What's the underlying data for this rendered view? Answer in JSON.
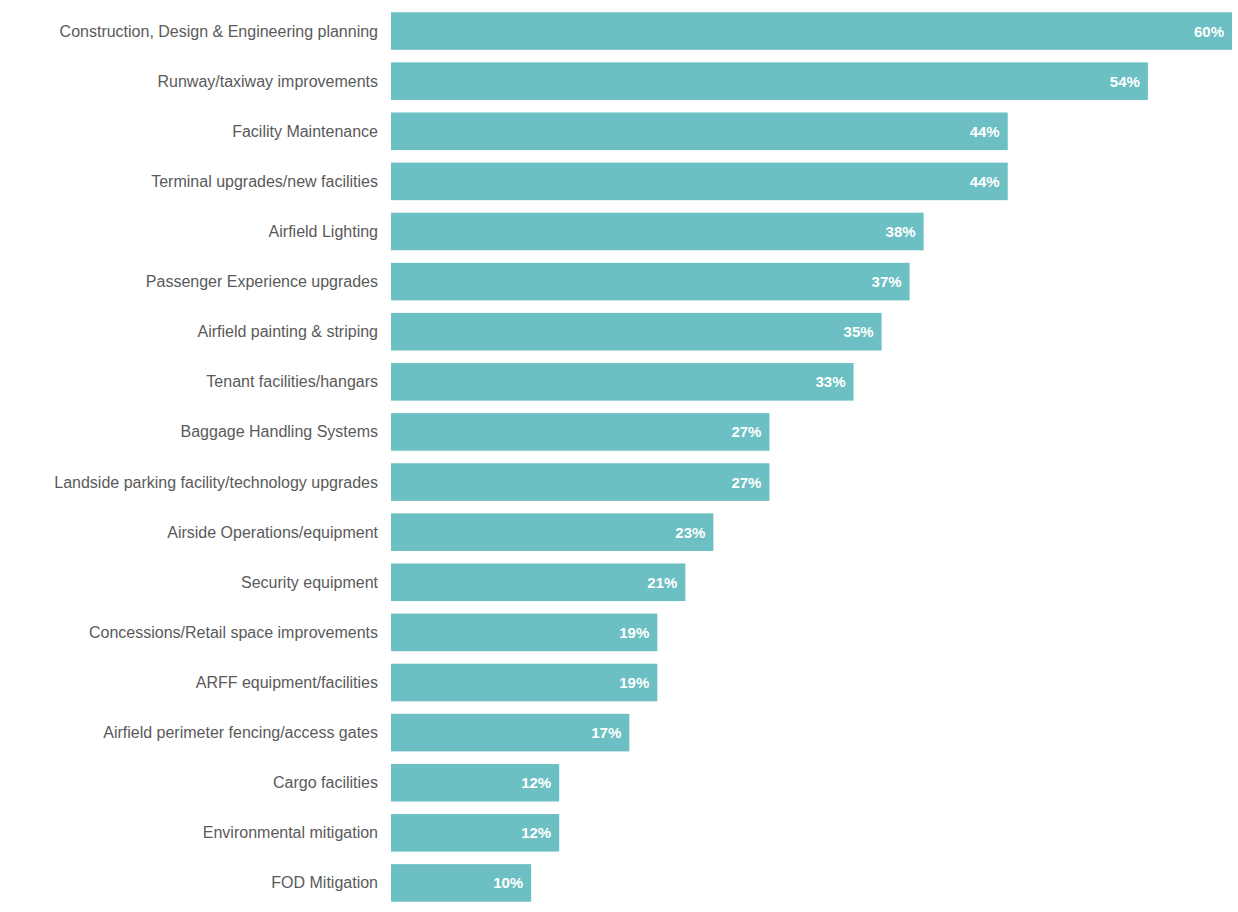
{
  "chart_data": {
    "type": "bar",
    "orientation": "horizontal",
    "categories": [
      "Construction, Design & Engineering planning",
      "Runway/taxiway improvements",
      "Facility Maintenance",
      "Terminal upgrades/new facilities",
      "Airfield Lighting",
      "Passenger Experience upgrades",
      "Airfield painting & striping",
      "Tenant facilities/hangars",
      "Baggage Handling Systems",
      "Landside parking facility/technology upgrades",
      "Airside Operations/equipment",
      "Security equipment",
      "Concessions/Retail space improvements",
      "ARFF equipment/facilities",
      "Airfield perimeter fencing/access gates",
      "Cargo facilities",
      "Environmental mitigation",
      "FOD Mitigation"
    ],
    "values": [
      60,
      54,
      44,
      44,
      38,
      37,
      35,
      33,
      27,
      27,
      23,
      21,
      19,
      19,
      17,
      12,
      12,
      10
    ],
    "value_labels": [
      "60%",
      "54%",
      "44%",
      "44%",
      "38%",
      "37%",
      "35%",
      "33%",
      "27%",
      "27%",
      "23%",
      "21%",
      "19%",
      "19%",
      "17%",
      "12%",
      "12%",
      "10%"
    ],
    "color": "#6cbfc3",
    "xlim": [
      0,
      60
    ],
    "data_labels": true,
    "tick_labels": false,
    "grid": false
  }
}
